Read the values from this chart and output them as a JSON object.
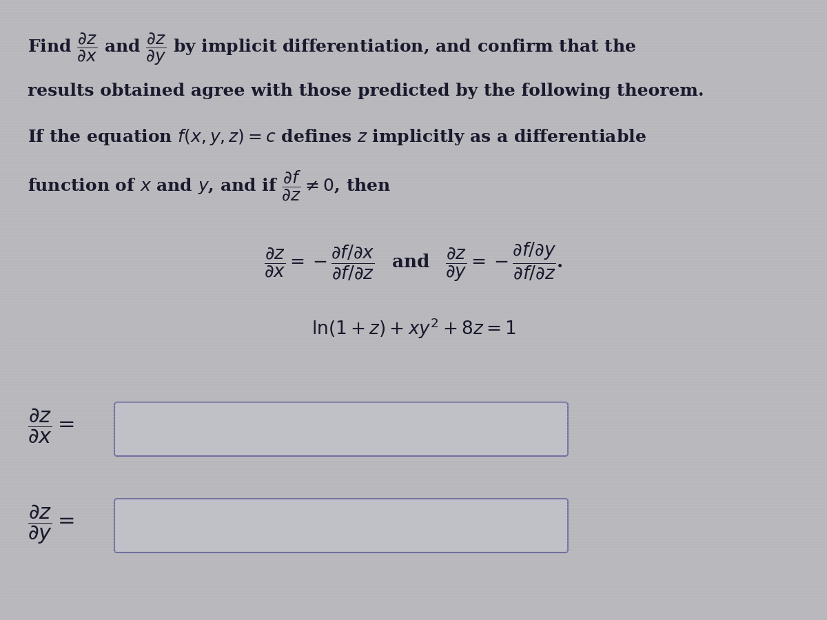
{
  "bg_color": "#b8b8bc",
  "stripe_color": "#c2c2c6",
  "text_color": "#1a1a2e",
  "fig_width": 12.0,
  "fig_height": 9.0,
  "box_face_color": "#c0c0c8",
  "box_edge_color": "#7070a0",
  "font_size_main": 18,
  "font_size_theorem": 17,
  "font_size_eq": 17,
  "font_size_label": 19
}
